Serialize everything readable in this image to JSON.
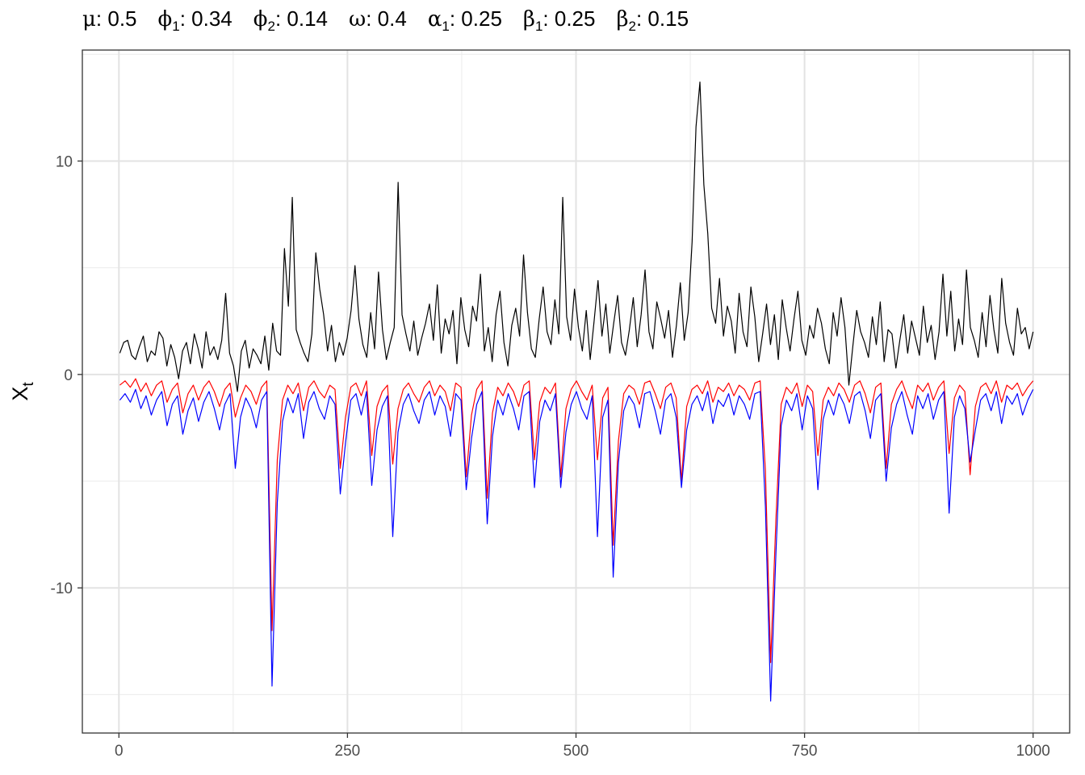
{
  "title": {
    "params": [
      {
        "symbol": "μ",
        "sub": "",
        "value": "0.5"
      },
      {
        "symbol": "ϕ",
        "sub": "1",
        "value": "0.34"
      },
      {
        "symbol": "ϕ",
        "sub": "2",
        "value": "0.14"
      },
      {
        "symbol": "ω",
        "sub": "",
        "value": "0.4"
      },
      {
        "symbol": "α",
        "sub": "1",
        "value": "0.25"
      },
      {
        "symbol": "β",
        "sub": "1",
        "value": "0.25"
      },
      {
        "symbol": "β",
        "sub": "2",
        "value": "0.15"
      }
    ]
  },
  "chart_data": {
    "type": "line",
    "title": "",
    "xlabel": "",
    "ylabel": "X",
    "ylabel_sub": "t",
    "xlim": [
      -40,
      1040
    ],
    "ylim": [
      -16.8,
      15.2
    ],
    "x_ticks": [
      0,
      250,
      500,
      750,
      1000
    ],
    "x_tick_labels": [
      "0",
      "250",
      "500",
      "750",
      "1000"
    ],
    "y_ticks": [
      -10,
      0,
      10
    ],
    "y_tick_labels": [
      "-10",
      "0",
      "10"
    ],
    "grid": true,
    "legend": "none",
    "n_points": 1000,
    "series": [
      {
        "color": "#000000",
        "values": [
          1.0,
          1.5,
          1.6,
          0.9,
          0.7,
          1.3,
          1.8,
          0.6,
          1.1,
          0.9,
          2.0,
          1.7,
          0.4,
          1.4,
          0.8,
          -0.2,
          1.1,
          1.5,
          0.5,
          1.9,
          1.2,
          0.3,
          2.0,
          0.9,
          1.3,
          0.7,
          1.6,
          3.8,
          1.0,
          0.4,
          -0.8,
          1.1,
          1.6,
          0.3,
          1.2,
          0.9,
          0.5,
          1.8,
          0.2,
          2.4,
          1.1,
          0.9,
          5.9,
          3.2,
          8.3,
          2.1,
          1.5,
          1.0,
          0.6,
          1.9,
          5.7,
          4.0,
          2.8,
          1.1,
          2.3,
          0.6,
          1.5,
          0.9,
          1.7,
          3.0,
          5.1,
          2.6,
          1.4,
          0.8,
          2.9,
          1.2,
          4.8,
          2.1,
          0.7,
          1.5,
          2.2,
          9.0,
          2.8,
          1.9,
          1.1,
          2.5,
          0.9,
          1.7,
          2.4,
          3.3,
          1.6,
          4.2,
          1.0,
          2.6,
          1.9,
          3.0,
          0.5,
          3.6,
          2.1,
          1.3,
          3.2,
          2.5,
          4.7,
          1.1,
          2.2,
          0.6,
          2.8,
          3.9,
          1.5,
          0.4,
          2.3,
          3.1,
          1.8,
          5.6,
          2.9,
          1.2,
          0.8,
          2.6,
          4.1,
          2.0,
          1.4,
          3.5,
          1.9,
          8.3,
          2.7,
          1.6,
          4.0,
          2.2,
          1.1,
          3.0,
          0.7,
          2.5,
          4.4,
          1.8,
          3.3,
          1.0,
          2.4,
          3.7,
          1.5,
          0.9,
          2.1,
          3.6,
          1.3,
          2.8,
          4.9,
          2.0,
          1.2,
          3.4,
          2.6,
          1.7,
          3.0,
          0.8,
          2.3,
          4.3,
          1.6,
          2.9,
          6.2,
          11.6,
          13.7,
          8.9,
          6.6,
          3.1,
          2.4,
          4.5,
          1.8,
          3.2,
          2.5,
          1.0,
          3.8,
          2.0,
          1.3,
          4.1,
          2.7,
          0.6,
          1.9,
          3.3,
          1.4,
          2.8,
          0.7,
          3.5,
          2.2,
          1.1,
          2.6,
          3.9,
          1.6,
          0.9,
          2.3,
          1.7,
          3.1,
          2.4,
          1.2,
          0.5,
          2.9,
          1.8,
          3.6,
          2.2,
          -0.5,
          1.3,
          3.0,
          2.0,
          1.5,
          0.8,
          2.7,
          1.4,
          3.4,
          0.6,
          2.1,
          1.9,
          0.3,
          1.6,
          2.8,
          1.0,
          2.5,
          1.7,
          0.9,
          3.2,
          1.5,
          2.3,
          0.7,
          2.0,
          4.7,
          1.8,
          3.9,
          1.1,
          2.6,
          1.4,
          4.9,
          2.2,
          1.6,
          0.8,
          2.9,
          1.3,
          3.7,
          2.1,
          1.0,
          4.5,
          2.4,
          1.5,
          0.9,
          3.1,
          1.9,
          2.2,
          1.2,
          2.0
        ]
      },
      {
        "color": "#ff0000",
        "values": [
          -0.5,
          -0.3,
          -0.6,
          -0.2,
          -0.8,
          -0.4,
          -1.0,
          -0.5,
          -0.3,
          -1.3,
          -0.7,
          -0.4,
          -1.8,
          -0.9,
          -0.5,
          -1.2,
          -0.6,
          -0.3,
          -0.8,
          -1.5,
          -0.7,
          -0.4,
          -2.0,
          -1.1,
          -0.5,
          -0.8,
          -1.4,
          -0.6,
          -0.3,
          -12.0,
          -4.0,
          -1.2,
          -0.5,
          -0.9,
          -0.4,
          -1.7,
          -0.6,
          -0.3,
          -0.8,
          -1.1,
          -0.5,
          -0.7,
          -4.4,
          -2.0,
          -0.6,
          -0.4,
          -1.0,
          -0.3,
          -3.8,
          -1.5,
          -0.8,
          -0.5,
          -4.2,
          -1.6,
          -0.7,
          -0.4,
          -0.9,
          -1.3,
          -0.6,
          -0.3,
          -1.0,
          -0.5,
          -0.8,
          -1.7,
          -0.4,
          -0.6,
          -4.8,
          -1.9,
          -0.7,
          -0.3,
          -5.8,
          -1.8,
          -0.6,
          -1.0,
          -0.4,
          -0.8,
          -1.5,
          -0.5,
          -0.3,
          -4.0,
          -1.3,
          -0.6,
          -0.9,
          -0.4,
          -4.8,
          -1.6,
          -0.7,
          -0.3,
          -0.8,
          -1.2,
          -0.5,
          -4.0,
          -1.1,
          -0.6,
          -8.0,
          -3.1,
          -0.9,
          -0.5,
          -0.7,
          -1.4,
          -0.4,
          -0.3,
          -0.9,
          -1.6,
          -0.6,
          -0.4,
          -1.1,
          -5.0,
          -1.5,
          -0.7,
          -0.5,
          -0.9,
          -0.3,
          -1.3,
          -0.6,
          -0.8,
          -0.4,
          -1.0,
          -0.5,
          -0.7,
          -1.2,
          -0.4,
          -0.3,
          -4.5,
          -13.5,
          -6.8,
          -1.4,
          -0.6,
          -0.9,
          -0.4,
          -1.5,
          -0.5,
          -0.8,
          -3.8,
          -1.2,
          -0.6,
          -1.0,
          -0.4,
          -0.7,
          -1.3,
          -0.5,
          -0.3,
          -0.9,
          -1.8,
          -0.6,
          -0.4,
          -4.4,
          -1.4,
          -0.7,
          -0.3,
          -1.0,
          -1.6,
          -0.5,
          -0.8,
          -0.4,
          -1.2,
          -0.6,
          -0.3,
          -3.7,
          -1.1,
          -0.5,
          -0.8,
          -4.7,
          -1.5,
          -0.6,
          -0.4,
          -0.9,
          -0.3,
          -1.3,
          -0.5,
          -0.7,
          -0.4,
          -1.0,
          -0.6,
          -0.3
        ]
      },
      {
        "color": "#0000ff",
        "values": [
          -1.2,
          -0.9,
          -1.3,
          -0.7,
          -1.6,
          -1.0,
          -1.9,
          -1.2,
          -0.8,
          -2.4,
          -1.4,
          -1.0,
          -2.8,
          -1.7,
          -1.1,
          -2.2,
          -1.3,
          -0.8,
          -1.6,
          -2.6,
          -1.4,
          -0.9,
          -4.4,
          -2.0,
          -1.1,
          -1.6,
          -2.5,
          -1.2,
          -0.8,
          -14.6,
          -6.0,
          -2.2,
          -1.1,
          -1.8,
          -0.9,
          -3.0,
          -1.3,
          -0.8,
          -1.6,
          -2.1,
          -1.0,
          -1.4,
          -5.6,
          -3.2,
          -1.2,
          -0.9,
          -1.9,
          -0.8,
          -5.2,
          -2.6,
          -1.5,
          -1.0,
          -7.6,
          -2.7,
          -1.4,
          -0.9,
          -1.7,
          -2.3,
          -1.2,
          -0.8,
          -1.9,
          -1.0,
          -1.5,
          -2.9,
          -0.9,
          -1.2,
          -5.4,
          -3.0,
          -1.4,
          -0.8,
          -7.0,
          -2.9,
          -1.2,
          -1.9,
          -0.9,
          -1.6,
          -2.6,
          -1.0,
          -0.8,
          -5.3,
          -2.2,
          -1.2,
          -1.7,
          -0.9,
          -5.3,
          -2.7,
          -1.4,
          -0.8,
          -1.6,
          -2.1,
          -1.0,
          -7.6,
          -2.0,
          -1.2,
          -9.5,
          -4.1,
          -1.7,
          -1.0,
          -1.4,
          -2.5,
          -0.9,
          -0.8,
          -1.7,
          -2.8,
          -1.2,
          -0.9,
          -2.0,
          -5.3,
          -2.6,
          -1.4,
          -1.0,
          -1.7,
          -0.8,
          -2.3,
          -1.2,
          -1.5,
          -0.9,
          -1.9,
          -1.0,
          -1.4,
          -2.1,
          -0.9,
          -0.8,
          -6.2,
          -15.3,
          -8.4,
          -2.4,
          -1.2,
          -1.7,
          -0.9,
          -2.6,
          -1.0,
          -1.6,
          -5.4,
          -2.1,
          -1.2,
          -1.9,
          -0.9,
          -1.4,
          -2.3,
          -1.0,
          -0.8,
          -1.7,
          -3.0,
          -1.2,
          -0.9,
          -5.0,
          -2.5,
          -1.4,
          -0.8,
          -1.9,
          -2.8,
          -1.0,
          -1.6,
          -0.9,
          -2.1,
          -1.2,
          -0.8,
          -6.5,
          -2.0,
          -1.0,
          -1.6,
          -4.1,
          -2.6,
          -1.2,
          -0.9,
          -1.7,
          -0.8,
          -2.3,
          -1.0,
          -1.4,
          -0.9,
          -1.9,
          -1.2,
          -0.7
        ]
      }
    ]
  }
}
